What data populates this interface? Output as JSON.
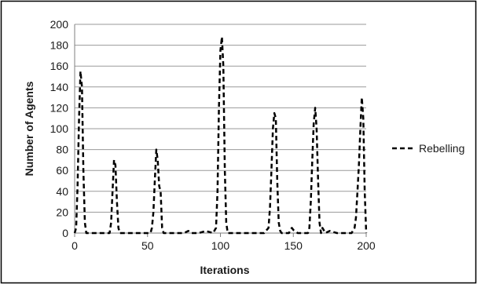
{
  "chart_data": {
    "type": "line",
    "title": "",
    "xlabel": "Iterations",
    "ylabel": "Number of Agents",
    "xlim": [
      0,
      200
    ],
    "ylim": [
      0,
      200
    ],
    "xticks": [
      0,
      50,
      100,
      150,
      200
    ],
    "yticks": [
      0,
      20,
      40,
      60,
      80,
      100,
      120,
      140,
      160,
      180,
      200
    ],
    "grid": "horizontal",
    "legend_position": "right",
    "series": [
      {
        "name": "Rebelling",
        "color": "#000000",
        "style": "dashed",
        "x": [
          0,
          1,
          2,
          3,
          4,
          5,
          6,
          7,
          8,
          10,
          15,
          20,
          24,
          25,
          26,
          27,
          28,
          29,
          30,
          31,
          32,
          35,
          40,
          45,
          50,
          52,
          53,
          54,
          55,
          56,
          57,
          58,
          59,
          60,
          61,
          62,
          65,
          70,
          75,
          78,
          80,
          85,
          90,
          95,
          97,
          98,
          99,
          100,
          101,
          102,
          103,
          104,
          105,
          110,
          115,
          120,
          125,
          130,
          133,
          134,
          135,
          136,
          137,
          138,
          139,
          140,
          141,
          142,
          145,
          147,
          148,
          149,
          150,
          153,
          155,
          160,
          161,
          162,
          163,
          164,
          165,
          166,
          167,
          168,
          169,
          170,
          172,
          175,
          180,
          185,
          190,
          192,
          193,
          194,
          195,
          196,
          197,
          198,
          199,
          200
        ],
        "y": [
          0,
          5,
          45,
          110,
          155,
          140,
          60,
          10,
          0,
          0,
          0,
          0,
          0,
          10,
          40,
          70,
          65,
          30,
          5,
          0,
          0,
          0,
          0,
          0,
          0,
          0,
          5,
          20,
          50,
          80,
          70,
          45,
          40,
          5,
          0,
          0,
          0,
          0,
          0,
          2,
          0,
          0,
          2,
          0,
          5,
          40,
          120,
          175,
          188,
          160,
          60,
          10,
          0,
          0,
          0,
          0,
          0,
          0,
          5,
          25,
          60,
          100,
          115,
          110,
          50,
          10,
          2,
          0,
          0,
          0,
          3,
          5,
          3,
          0,
          0,
          0,
          5,
          30,
          70,
          105,
          120,
          100,
          50,
          10,
          0,
          5,
          0,
          2,
          0,
          0,
          0,
          5,
          15,
          40,
          65,
          100,
          130,
          110,
          40,
          0
        ]
      }
    ]
  }
}
